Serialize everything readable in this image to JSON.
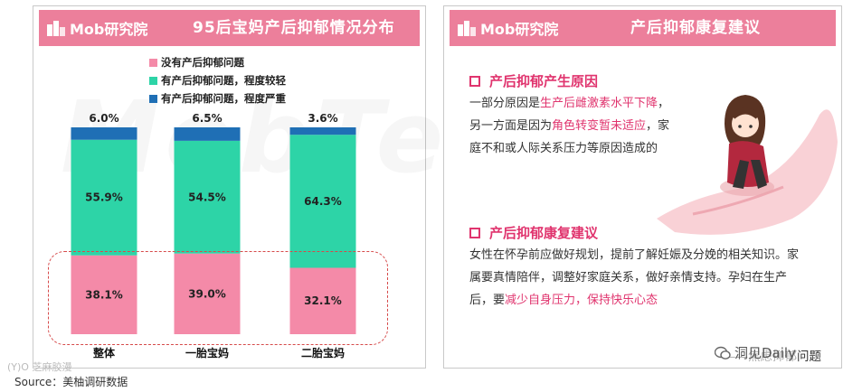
{
  "brand": {
    "logo_text": "Mob研究院"
  },
  "left": {
    "title": "95后宝妈产后抑郁情况分布",
    "watermark": "MobTech袤博"
  },
  "chart_data": {
    "type": "bar",
    "stacked": true,
    "title": "95后宝妈产后抑郁情况分布",
    "categories": [
      "整体",
      "一胎宝妈",
      "二胎宝妈"
    ],
    "series": [
      {
        "name": "没有产后抑郁问题",
        "color": "#f48aa8",
        "values": [
          38.1,
          39.0,
          32.1
        ],
        "labels": [
          "38.1%",
          "39.0%",
          "32.1%"
        ]
      },
      {
        "name": "有产后抑郁问题，程度较轻",
        "color": "#2dd4a7",
        "values": [
          55.9,
          54.5,
          64.3
        ],
        "labels": [
          "55.9%",
          "54.5%",
          "64.3%"
        ]
      },
      {
        "name": "有产后抑郁问题，程度严重",
        "color": "#1f6fb5",
        "values": [
          6.0,
          6.5,
          3.6
        ],
        "labels": [
          "6.0%",
          "6.5%",
          "3.6%"
        ]
      }
    ],
    "ylim": [
      0,
      100
    ],
    "legend_position": "top",
    "grid": false
  },
  "right": {
    "title": "产后抑郁康复建议",
    "section1": {
      "heading": "产后抑郁产生原因",
      "parts": [
        {
          "text": "一部分原因是",
          "hl": false
        },
        {
          "text": "生产后雌激素水平下降",
          "hl": true
        },
        {
          "text": "，另一方面是因为",
          "hl": false
        },
        {
          "text": "角色转变暂未适应",
          "hl": true
        },
        {
          "text": "，家庭不和或人际关系压力等原因造成的",
          "hl": false
        }
      ]
    },
    "section2": {
      "heading": "产后抑郁康复建议",
      "parts": [
        {
          "text": "女性在怀孕前应做好规划，提前了解妊娠及分娩的相关知识。家属要真情陪伴，调整好家庭关系，做好亲情支持。孕妇在生产后，要",
          "hl": false
        },
        {
          "text": "减少自身压力，保持快乐心态",
          "hl": true
        }
      ]
    },
    "signature": "——焦虑抑郁问题"
  },
  "footer": {
    "source": "Source：美柚调研数据",
    "corner_mark": "(Y)O 芝麻胶漫",
    "wechat_mark": "洞见Daily"
  }
}
